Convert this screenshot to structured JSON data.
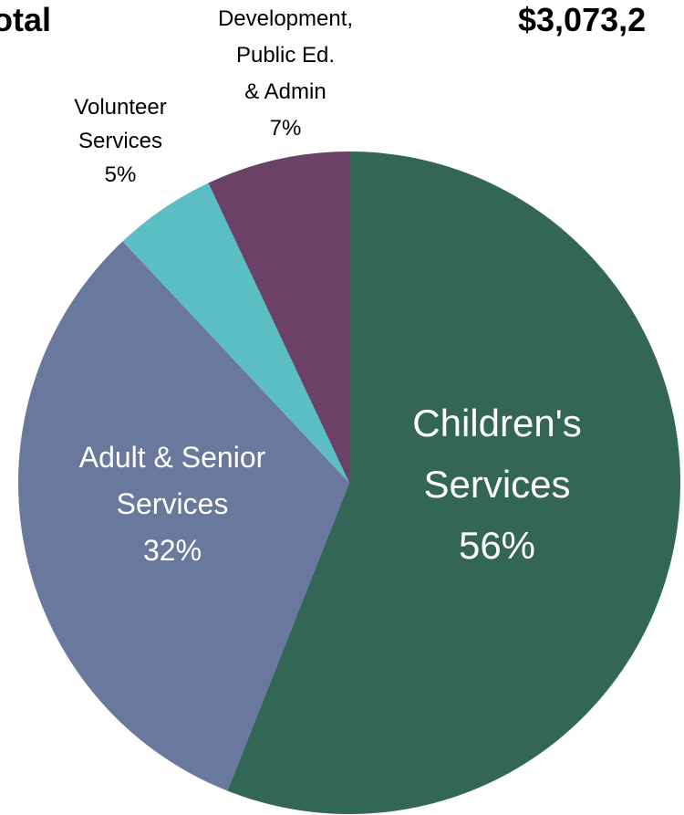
{
  "header": {
    "left_text": "otal",
    "right_text": "$3,073,2"
  },
  "chart_data": {
    "type": "pie",
    "slices": [
      {
        "label_lines": [
          "Children's",
          "Services",
          "56%"
        ],
        "value": 56,
        "color": "#336657",
        "label_color": "#ffffff",
        "label_size": 42,
        "label_position": "inside"
      },
      {
        "label_lines": [
          "Adult & Senior",
          "Services",
          "32%"
        ],
        "value": 32,
        "color": "#69799D",
        "label_color": "#ffffff",
        "label_size": 32,
        "label_position": "inside"
      },
      {
        "label_lines": [
          "Volunteer",
          "Services",
          "5%"
        ],
        "value": 5,
        "color": "#5ABEC4",
        "label_color": "#000000",
        "label_size": 24,
        "label_position": "outside"
      },
      {
        "label_lines": [
          "Development,",
          "Public Ed.",
          "& Admin",
          "7%"
        ],
        "value": 7,
        "color": "#6B4266",
        "label_color": "#000000",
        "label_size": 24,
        "label_position": "outside"
      }
    ],
    "start_angle_deg": 0,
    "direction": "clockwise"
  }
}
